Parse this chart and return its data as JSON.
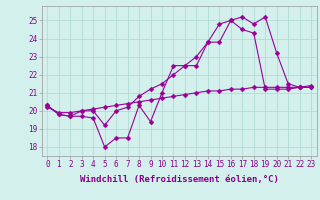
{
  "xlabel": "Windchill (Refroidissement éolien,°C)",
  "background_color": "#d4f0ec",
  "grid_color": "#aad8d0",
  "line_color": "#990099",
  "hours": [
    0,
    1,
    2,
    3,
    4,
    5,
    6,
    7,
    8,
    9,
    10,
    11,
    12,
    13,
    14,
    15,
    16,
    17,
    18,
    19,
    20,
    21,
    22,
    23
  ],
  "line1": [
    20.3,
    19.8,
    19.7,
    19.7,
    19.6,
    18.0,
    18.5,
    18.5,
    20.3,
    19.4,
    21.0,
    22.5,
    22.5,
    22.5,
    23.8,
    23.8,
    25.0,
    25.2,
    24.8,
    25.2,
    23.2,
    21.5,
    21.3,
    21.3
  ],
  "line2": [
    20.3,
    19.8,
    19.7,
    20.0,
    20.0,
    19.2,
    20.0,
    20.2,
    20.8,
    21.2,
    21.5,
    22.0,
    22.5,
    23.0,
    23.8,
    24.8,
    25.0,
    24.5,
    24.3,
    21.2,
    21.2,
    21.2,
    21.3,
    21.3
  ],
  "line3": [
    20.2,
    19.9,
    19.9,
    20.0,
    20.1,
    20.2,
    20.3,
    20.4,
    20.5,
    20.6,
    20.7,
    20.8,
    20.9,
    21.0,
    21.1,
    21.1,
    21.2,
    21.2,
    21.3,
    21.3,
    21.3,
    21.3,
    21.3,
    21.4
  ],
  "ylim": [
    17.5,
    25.8
  ],
  "yticks": [
    18,
    19,
    20,
    21,
    22,
    23,
    24,
    25
  ],
  "xtick_labels": [
    "0",
    "1",
    "2",
    "3",
    "4",
    "5",
    "6",
    "7",
    "8",
    "9",
    "10",
    "11",
    "12",
    "13",
    "14",
    "15",
    "16",
    "17",
    "18",
    "19",
    "20",
    "21",
    "22",
    "23"
  ],
  "markersize": 2.5,
  "linewidth": 0.8,
  "tick_fontsize": 5.5,
  "xlabel_fontsize": 6.5
}
